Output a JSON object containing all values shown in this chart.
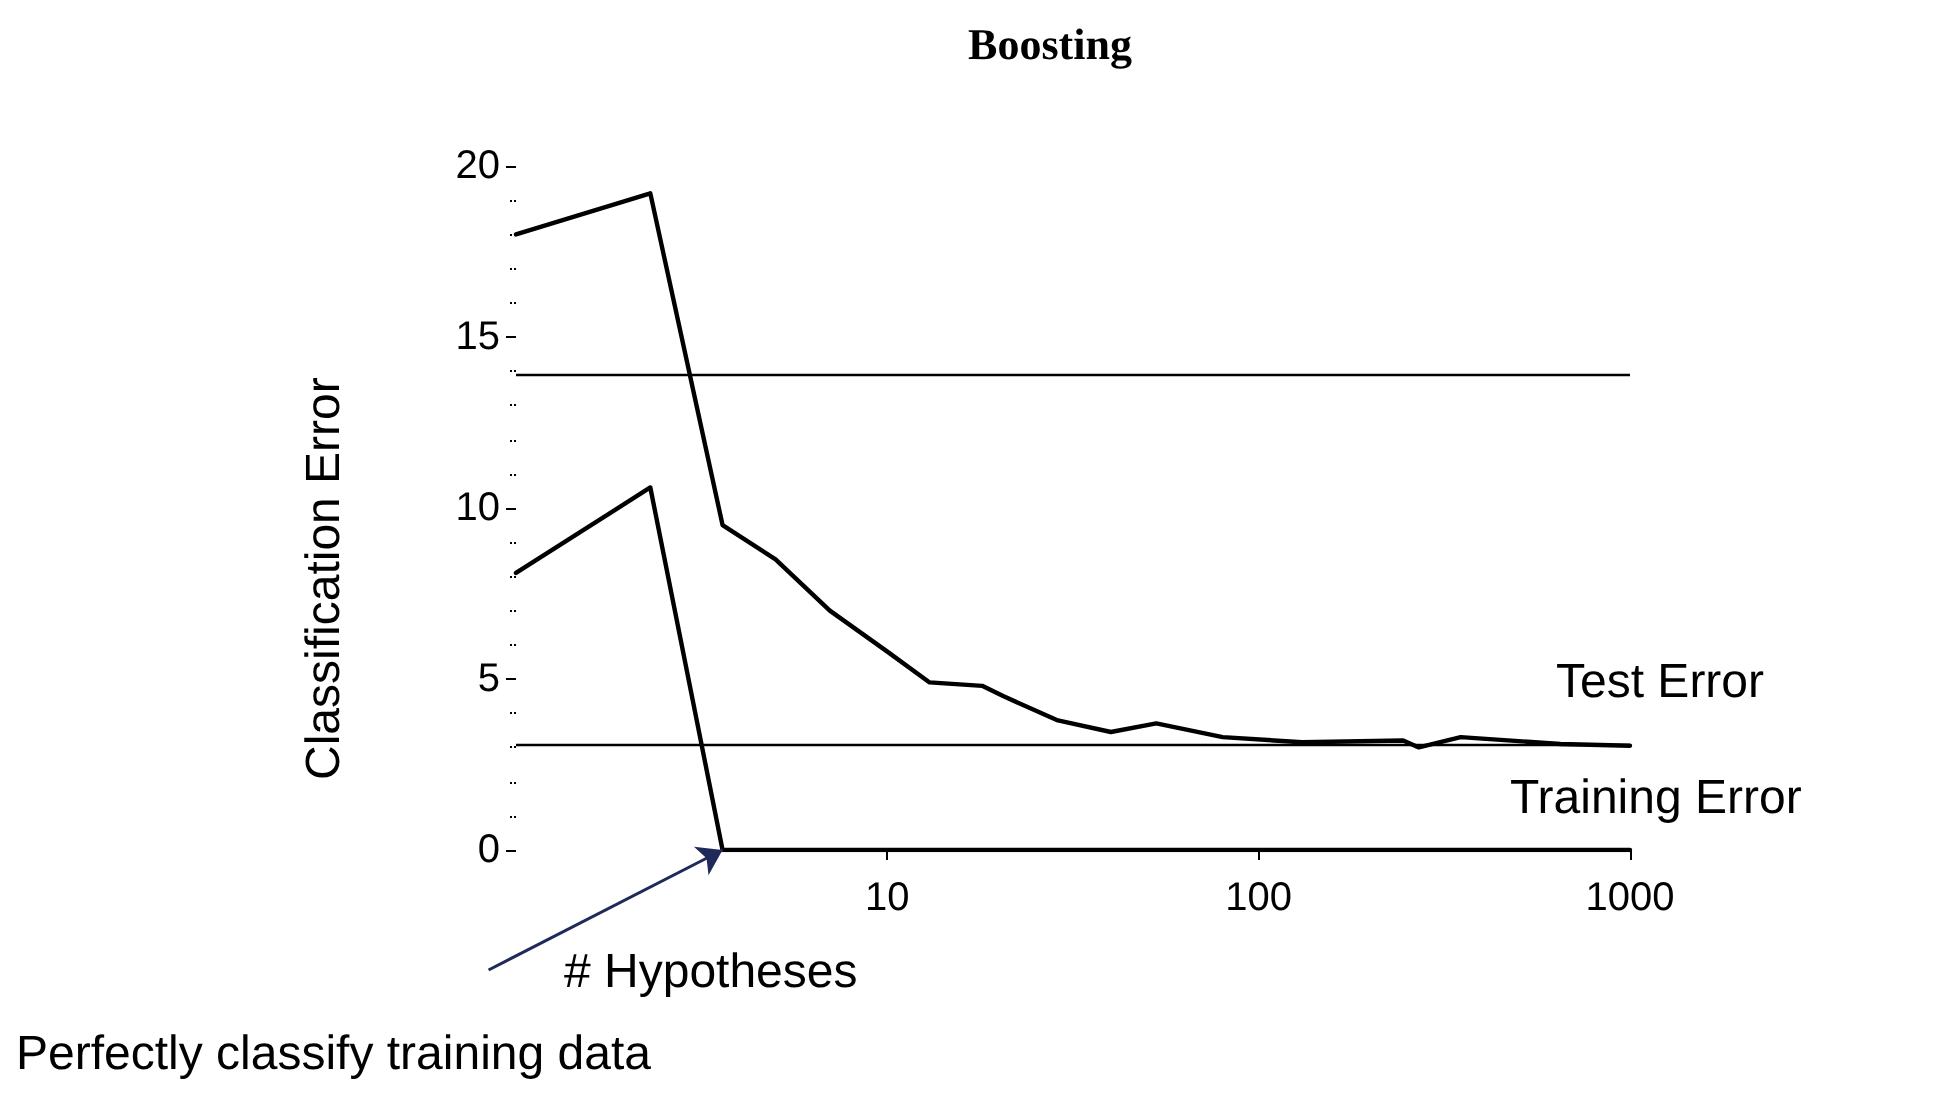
{
  "chart_data": {
    "type": "line",
    "title": "Boosting",
    "xlabel": "# Hypotheses",
    "ylabel": "Classification Error",
    "log": "x",
    "xlim": [
      1,
      1000
    ],
    "xticks": [
      10,
      100,
      1000
    ],
    "ylim": [
      0,
      20
    ],
    "yticks": [
      0,
      5,
      10,
      15,
      20
    ],
    "grid": false,
    "legend": false,
    "marker": "none",
    "line_style": "solid",
    "series": [
      {
        "name": "Test Error",
        "color": "#000000",
        "x": [
          1,
          2.3,
          3.6,
          5,
          7,
          10,
          13,
          18,
          20.5,
          28.6,
          40,
          53,
          80,
          131,
          245,
          270,
          350,
          650,
          1000
        ],
        "values": [
          18.0,
          19.2,
          9.5,
          8.5,
          7.0,
          5.8,
          4.9,
          4.8,
          4.5,
          3.8,
          3.45,
          3.7,
          3.3,
          3.15,
          3.2,
          3.0,
          3.3,
          3.1,
          3.05
        ]
      },
      {
        "name": "Training Error",
        "color": "#000000",
        "x": [
          1,
          2.3,
          3.6,
          10,
          100,
          1000
        ],
        "values": [
          8.1,
          10.6,
          0,
          0,
          0,
          0
        ]
      }
    ],
    "ref_lines": [
      {
        "axis": "y",
        "value": 13.9,
        "color": "#000000"
      },
      {
        "axis": "y",
        "value": 3.1,
        "color": "#000000"
      }
    ],
    "annotations": [
      {
        "text": "Perfectly classify training data",
        "x": 3.6,
        "y": 0
      }
    ]
  }
}
